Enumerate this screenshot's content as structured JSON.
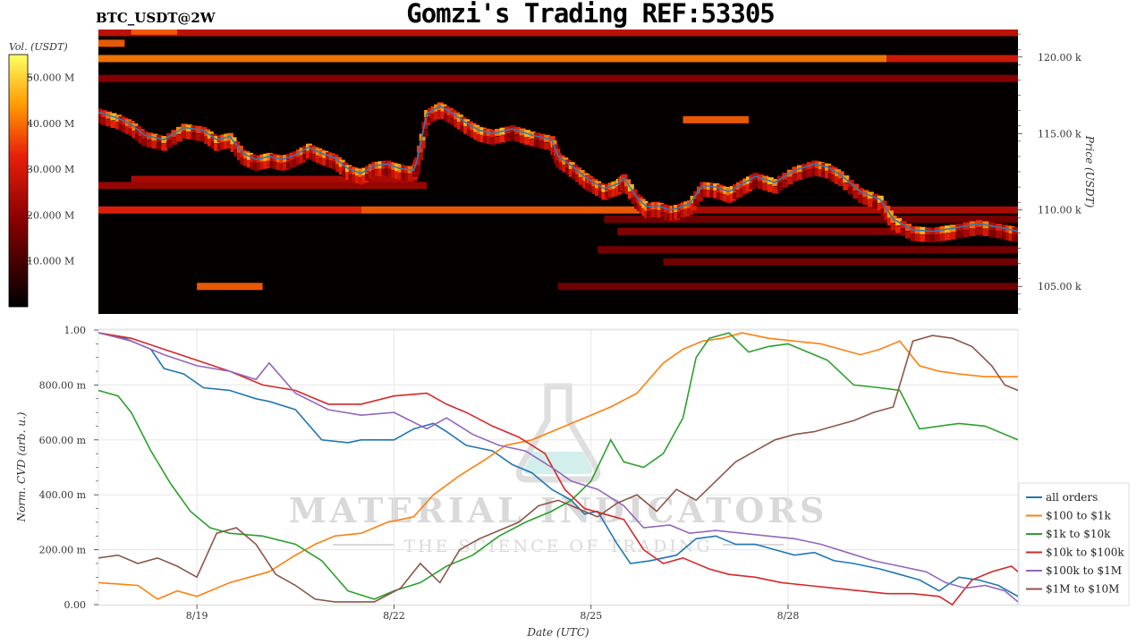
{
  "header": {
    "title": "Gomzi's Trading REF:53305",
    "symbol": "BTC_USDT@2W"
  },
  "watermark": {
    "line1": "MATERIAL INDICATORS",
    "line2": "THE SCIENCE OF TRADING"
  },
  "chart_data": [
    {
      "type": "heatmap",
      "title": "",
      "colorbar": {
        "label": "Vol. (USDT)",
        "range": [
          0,
          55000000
        ],
        "ticks": [
          "10.000 M",
          "20.000 M",
          "30.000 M",
          "40.000 M",
          "50.000 M"
        ],
        "tick_values": [
          10000000,
          20000000,
          30000000,
          40000000,
          50000000
        ]
      },
      "ylabel": "Price (USDT)",
      "ylim": [
        103200,
        121800
      ],
      "y_ticks": [
        "105.00 k",
        "110.00 k",
        "115.00 k",
        "120.00 k"
      ],
      "y_tick_values": [
        105000,
        110000,
        115000,
        120000
      ],
      "xlim": [
        0,
        14
      ],
      "price_line": {
        "color": "#2b7bba",
        "t": [
          0,
          0.3,
          0.5,
          0.7,
          1.0,
          1.3,
          1.6,
          1.8,
          2.0,
          2.2,
          2.4,
          2.6,
          2.8,
          3.0,
          3.2,
          3.4,
          3.6,
          3.8,
          4.0,
          4.2,
          4.4,
          4.6,
          4.8,
          4.85,
          5.0,
          5.2,
          5.4,
          5.6,
          5.8,
          6.0,
          6.3,
          6.6,
          6.9,
          7.0,
          7.2,
          7.4,
          7.5,
          7.7,
          7.9,
          8.0,
          8.2,
          8.35,
          8.5,
          8.7,
          8.8,
          9.0,
          9.2,
          9.4,
          9.6,
          9.8,
          10.0,
          10.3,
          10.6,
          10.9,
          11.1,
          11.3,
          11.6,
          11.9,
          12.1,
          12.4,
          12.7,
          13.0,
          13.4,
          13.8,
          14.0
        ],
        "price": [
          116400,
          116000,
          115600,
          114900,
          114600,
          115400,
          115200,
          114600,
          114800,
          113700,
          113300,
          113500,
          113300,
          113600,
          114100,
          113700,
          113400,
          112700,
          112400,
          112900,
          113000,
          112700,
          112600,
          113200,
          116300,
          116800,
          116300,
          115700,
          115200,
          115000,
          115300,
          114900,
          114600,
          113500,
          112900,
          112200,
          111900,
          111400,
          111700,
          112100,
          110800,
          110200,
          110300,
          110000,
          110100,
          110400,
          111600,
          111500,
          111200,
          111700,
          112200,
          111800,
          112600,
          113000,
          112800,
          112300,
          111200,
          110700,
          109400,
          108700,
          108600,
          108800,
          109100,
          108800,
          108600
        ]
      },
      "bands": [
        {
          "price": 121600,
          "from": 0,
          "to": 14,
          "intensity": 0.5
        },
        {
          "price": 121700,
          "from": 0.5,
          "to": 1.2,
          "intensity": 0.7
        },
        {
          "price": 120900,
          "from": 0,
          "to": 0.4,
          "intensity": 0.7
        },
        {
          "price": 119900,
          "from": 0,
          "to": 12.0,
          "intensity": 0.75
        },
        {
          "price": 119900,
          "from": 12.0,
          "to": 14,
          "intensity": 0.55
        },
        {
          "price": 118600,
          "from": 0,
          "to": 14,
          "intensity": 0.35
        },
        {
          "price": 115900,
          "from": 8.9,
          "to": 9.9,
          "intensity": 0.7
        },
        {
          "price": 112000,
          "from": 0.5,
          "to": 4.8,
          "intensity": 0.45
        },
        {
          "price": 111600,
          "from": 0,
          "to": 5.0,
          "intensity": 0.4
        },
        {
          "price": 110000,
          "from": 0,
          "to": 4.0,
          "intensity": 0.6
        },
        {
          "price": 110000,
          "from": 4.0,
          "to": 8.4,
          "intensity": 0.7
        },
        {
          "price": 110000,
          "from": 8.4,
          "to": 14,
          "intensity": 0.45
        },
        {
          "price": 109400,
          "from": 7.7,
          "to": 14,
          "intensity": 0.3
        },
        {
          "price": 108600,
          "from": 7.9,
          "to": 14,
          "intensity": 0.35
        },
        {
          "price": 107400,
          "from": 7.6,
          "to": 14,
          "intensity": 0.3
        },
        {
          "price": 106600,
          "from": 8.6,
          "to": 14,
          "intensity": 0.3
        },
        {
          "price": 105000,
          "from": 1.5,
          "to": 2.5,
          "intensity": 0.7
        },
        {
          "price": 105000,
          "from": 7.0,
          "to": 14,
          "intensity": 0.3
        }
      ]
    },
    {
      "type": "line",
      "title": "",
      "xlabel": "Date (UTC)",
      "ylabel": "Norm. CVD (arb. u.)",
      "ylim": [
        0,
        1
      ],
      "xlim": [
        0,
        14
      ],
      "y_ticks": [
        "0.00",
        "200.00 m",
        "400.00 m",
        "600.00 m",
        "800.00 m",
        "1.00"
      ],
      "y_tick_values": [
        0,
        0.2,
        0.4,
        0.6,
        0.8,
        1.0
      ],
      "x_ticks": [
        "8/19",
        "8/22",
        "8/25",
        "8/28"
      ],
      "x_tick_values": [
        1.5,
        4.5,
        7.5,
        10.5
      ],
      "grid": true,
      "legend": "right",
      "series": [
        {
          "name": "all orders",
          "color": "#1f77b4",
          "x": [
            0,
            0.4,
            0.8,
            1.0,
            1.3,
            1.6,
            2.0,
            2.4,
            2.6,
            3.0,
            3.4,
            3.8,
            4.0,
            4.5,
            4.8,
            5.1,
            5.3,
            5.6,
            6.0,
            6.3,
            6.6,
            6.9,
            7.2,
            7.4,
            7.6,
            7.9,
            8.1,
            8.4,
            8.8,
            9.1,
            9.4,
            9.7,
            10.0,
            10.3,
            10.6,
            10.9,
            11.2,
            11.5,
            11.9,
            12.2,
            12.5,
            12.8,
            13.1,
            13.4,
            13.7,
            14.0
          ],
          "y": [
            0.99,
            0.97,
            0.93,
            0.86,
            0.84,
            0.79,
            0.78,
            0.75,
            0.74,
            0.71,
            0.6,
            0.59,
            0.6,
            0.6,
            0.64,
            0.66,
            0.63,
            0.58,
            0.56,
            0.51,
            0.48,
            0.42,
            0.38,
            0.33,
            0.34,
            0.22,
            0.15,
            0.16,
            0.18,
            0.24,
            0.25,
            0.22,
            0.22,
            0.2,
            0.18,
            0.19,
            0.16,
            0.15,
            0.13,
            0.11,
            0.09,
            0.05,
            0.1,
            0.09,
            0.07,
            0.03
          ]
        },
        {
          "name": "$100 to $1k",
          "color": "#ff7f0e",
          "x": [
            0,
            0.6,
            0.9,
            1.2,
            1.5,
            2.0,
            2.6,
            3.0,
            3.3,
            3.6,
            4.0,
            4.4,
            4.8,
            5.1,
            5.5,
            5.9,
            6.2,
            6.6,
            7.0,
            7.4,
            7.8,
            8.2,
            8.6,
            8.9,
            9.2,
            9.5,
            9.8,
            10.2,
            10.6,
            11.0,
            11.3,
            11.6,
            11.9,
            12.2,
            12.5,
            12.8,
            13.1,
            13.5,
            14.0
          ],
          "y": [
            0.08,
            0.07,
            0.02,
            0.05,
            0.03,
            0.08,
            0.12,
            0.18,
            0.22,
            0.25,
            0.26,
            0.3,
            0.32,
            0.4,
            0.47,
            0.53,
            0.58,
            0.6,
            0.64,
            0.68,
            0.72,
            0.77,
            0.88,
            0.93,
            0.96,
            0.97,
            0.99,
            0.97,
            0.96,
            0.95,
            0.93,
            0.91,
            0.93,
            0.96,
            0.87,
            0.85,
            0.84,
            0.83,
            0.83
          ]
        },
        {
          "name": "$1k to $10k",
          "color": "#2ca02c",
          "x": [
            0,
            0.3,
            0.5,
            0.8,
            1.1,
            1.4,
            1.7,
            2.0,
            2.5,
            3.0,
            3.4,
            3.8,
            4.2,
            4.5,
            4.9,
            5.3,
            5.7,
            6.1,
            6.5,
            6.9,
            7.2,
            7.5,
            7.8,
            8.0,
            8.3,
            8.6,
            8.9,
            9.1,
            9.3,
            9.6,
            9.9,
            10.2,
            10.5,
            10.8,
            11.1,
            11.5,
            11.9,
            12.2,
            12.5,
            12.8,
            13.1,
            13.5,
            14.0
          ],
          "y": [
            0.78,
            0.76,
            0.7,
            0.56,
            0.44,
            0.34,
            0.28,
            0.26,
            0.25,
            0.22,
            0.16,
            0.05,
            0.02,
            0.05,
            0.08,
            0.14,
            0.18,
            0.25,
            0.3,
            0.34,
            0.38,
            0.45,
            0.6,
            0.52,
            0.5,
            0.55,
            0.68,
            0.9,
            0.97,
            0.99,
            0.92,
            0.94,
            0.95,
            0.92,
            0.89,
            0.8,
            0.79,
            0.78,
            0.64,
            0.65,
            0.66,
            0.65,
            0.6
          ]
        },
        {
          "name": "$10k to $100k",
          "color": "#d62728",
          "x": [
            0,
            0.5,
            1.0,
            1.5,
            2.0,
            2.5,
            3.0,
            3.5,
            4.0,
            4.5,
            5.0,
            5.3,
            5.6,
            6.0,
            6.4,
            6.8,
            7.1,
            7.4,
            7.7,
            8.0,
            8.3,
            8.6,
            8.9,
            9.3,
            9.6,
            10.0,
            10.4,
            10.8,
            11.2,
            11.6,
            12.0,
            12.4,
            12.8,
            13.0,
            13.3,
            13.6,
            13.9,
            14.0
          ],
          "y": [
            0.99,
            0.97,
            0.93,
            0.89,
            0.85,
            0.8,
            0.78,
            0.73,
            0.73,
            0.76,
            0.77,
            0.73,
            0.7,
            0.65,
            0.61,
            0.55,
            0.42,
            0.35,
            0.33,
            0.31,
            0.2,
            0.15,
            0.17,
            0.13,
            0.11,
            0.1,
            0.08,
            0.07,
            0.06,
            0.05,
            0.04,
            0.04,
            0.03,
            0.0,
            0.09,
            0.12,
            0.14,
            0.12
          ]
        },
        {
          "name": "$100k to $1M",
          "color": "#9467bd",
          "x": [
            0,
            0.5,
            1.0,
            1.5,
            2.0,
            2.4,
            2.6,
            3.0,
            3.5,
            4.0,
            4.5,
            5.0,
            5.3,
            5.7,
            6.1,
            6.5,
            6.9,
            7.2,
            7.6,
            8.0,
            8.3,
            8.7,
            9.0,
            9.4,
            9.8,
            10.2,
            10.6,
            11.0,
            11.4,
            11.8,
            12.2,
            12.6,
            12.9,
            13.2,
            13.5,
            13.8,
            14.0
          ],
          "y": [
            0.99,
            0.96,
            0.91,
            0.87,
            0.85,
            0.82,
            0.88,
            0.77,
            0.71,
            0.69,
            0.7,
            0.64,
            0.68,
            0.62,
            0.58,
            0.56,
            0.5,
            0.45,
            0.42,
            0.36,
            0.28,
            0.29,
            0.26,
            0.27,
            0.26,
            0.25,
            0.24,
            0.22,
            0.19,
            0.16,
            0.14,
            0.12,
            0.08,
            0.06,
            0.07,
            0.05,
            0.01
          ]
        },
        {
          "name": "$1M to $10M",
          "color": "#8c564b",
          "x": [
            0,
            0.3,
            0.6,
            0.9,
            1.2,
            1.5,
            1.8,
            2.1,
            2.4,
            2.7,
            3.0,
            3.3,
            3.6,
            3.9,
            4.2,
            4.6,
            4.9,
            5.2,
            5.5,
            5.8,
            6.1,
            6.4,
            6.7,
            7.0,
            7.3,
            7.6,
            7.9,
            8.2,
            8.5,
            8.8,
            9.1,
            9.4,
            9.7,
            10.0,
            10.3,
            10.6,
            10.9,
            11.2,
            11.5,
            11.8,
            12.1,
            12.4,
            12.7,
            13.0,
            13.3,
            13.6,
            13.8,
            14.0
          ],
          "y": [
            0.17,
            0.18,
            0.15,
            0.17,
            0.14,
            0.1,
            0.26,
            0.28,
            0.22,
            0.11,
            0.07,
            0.02,
            0.01,
            0.01,
            0.01,
            0.06,
            0.15,
            0.08,
            0.2,
            0.24,
            0.27,
            0.3,
            0.36,
            0.38,
            0.35,
            0.32,
            0.37,
            0.4,
            0.34,
            0.42,
            0.38,
            0.45,
            0.52,
            0.56,
            0.6,
            0.62,
            0.63,
            0.65,
            0.67,
            0.7,
            0.72,
            0.96,
            0.98,
            0.97,
            0.94,
            0.87,
            0.8,
            0.78
          ]
        }
      ]
    }
  ]
}
